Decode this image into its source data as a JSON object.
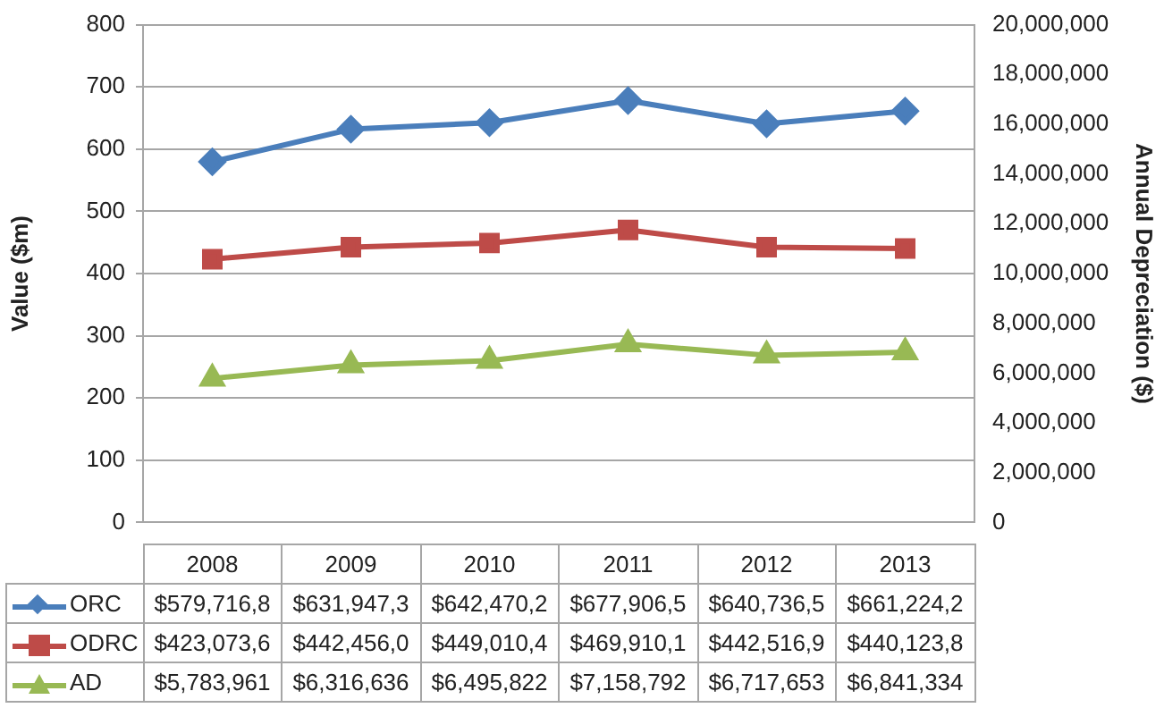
{
  "chart_data": {
    "type": "line",
    "categories": [
      "2008",
      "2009",
      "2010",
      "2011",
      "2012",
      "2013"
    ],
    "ylabel": "Value ($m)",
    "y2label": "Annual Depreciation ($)",
    "ylim": [
      0,
      800
    ],
    "yticks": [
      0,
      100,
      200,
      300,
      400,
      500,
      600,
      700,
      800
    ],
    "y2lim": [
      0,
      20000000
    ],
    "y2ticks": [
      0,
      {
        "value": 2000000,
        "label": "2,000,000"
      },
      {
        "value": 4000000,
        "label": "4,000,000"
      },
      {
        "value": 6000000,
        "label": "6,000,000"
      },
      {
        "value": 8000000,
        "label": "8,000,000"
      },
      {
        "value": 10000000,
        "label": "10,000,000"
      },
      {
        "value": 12000000,
        "label": "12,000,000"
      },
      {
        "value": 14000000,
        "label": "14,000,000"
      },
      {
        "value": 16000000,
        "label": "16,000,000"
      },
      {
        "value": 18000000,
        "label": "18,000,000"
      },
      {
        "value": 20000000,
        "label": "20,000,000"
      }
    ],
    "grid": "y",
    "legend": "bottom",
    "series": [
      {
        "name": "ORC",
        "color": "#4a7ebb",
        "marker": "diamond",
        "values": [
          579.7168,
          631.9473,
          642.4702,
          677.9065,
          640.7365,
          661.2242
        ],
        "value_labels": [
          "$579,716,8",
          "$631,947,3",
          "$642,470,2",
          "$677,906,5",
          "$640,736,5",
          "$661,224,2"
        ]
      },
      {
        "name": "ODRC",
        "color": "#be4b48",
        "marker": "square",
        "values": [
          423.0736,
          442.456,
          449.0104,
          469.9101,
          442.5169,
          440.1238
        ],
        "value_labels": [
          "$423,073,6",
          "$442,456,0",
          "$449,010,4",
          "$469,910,1",
          "$442,516,9",
          "$440,123,8"
        ]
      },
      {
        "name": "AD",
        "color": "#98b954",
        "marker": "triangle",
        "axis": "y2",
        "values": [
          5783961,
          6316636,
          6495822,
          7158792,
          6717653,
          6841334
        ],
        "value_labels": [
          "$5,783,961",
          "$6,316,636",
          "$6,495,822",
          "$7,158,792",
          "$6,717,653",
          "$6,841,334"
        ]
      }
    ]
  }
}
